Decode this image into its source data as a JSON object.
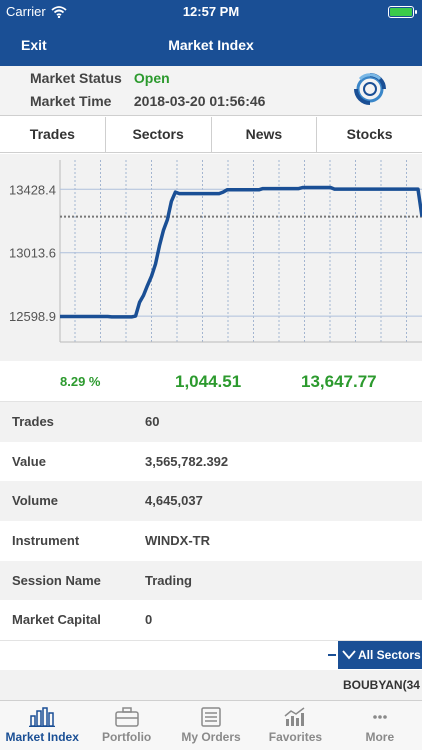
{
  "status_bar": {
    "carrier": "Carrier",
    "time": "12:57 PM"
  },
  "nav": {
    "exit_label": "Exit",
    "title": "Market Index"
  },
  "market_info": {
    "status_label": "Market Status",
    "status_value": "Open",
    "time_label": "Market Time",
    "time_value": "2018-03-20 01:56:46"
  },
  "tabs": [
    {
      "label": "Trades"
    },
    {
      "label": "Sectors"
    },
    {
      "label": "News"
    },
    {
      "label": "Stocks"
    }
  ],
  "chart_data": {
    "type": "line",
    "title": "",
    "xlabel": "",
    "ylabel": "",
    "y_ticks": [
      "13428.4",
      "13013.6",
      "12598.9"
    ],
    "ylim": [
      12430,
      13620
    ],
    "reference_value": 13250,
    "grid": true,
    "series": [
      {
        "color": "#1a4f95",
        "values": [
          12597,
          12597,
          12597,
          12597,
          12597,
          12597,
          12597,
          12597,
          12597,
          12597,
          12597,
          12597,
          12597,
          12594,
          12594,
          12594,
          12594,
          12594,
          12594,
          12600,
          12690,
          12735,
          12800,
          12860,
          12940,
          13060,
          13160,
          13230,
          13350,
          13410,
          13400,
          13400,
          13400,
          13400,
          13400,
          13400,
          13400,
          13400,
          13400,
          13400,
          13400,
          13410,
          13425,
          13425,
          13425,
          13425,
          13425,
          13425,
          13425,
          13425,
          13425,
          13433,
          13433,
          13433,
          13433,
          13433,
          13433,
          13433,
          13433,
          13433,
          13433,
          13440,
          13440,
          13440,
          13440,
          13440,
          13440,
          13440,
          13440,
          13430,
          13430,
          13430,
          13430,
          13430,
          13430,
          13430,
          13430,
          13430,
          13430,
          13430,
          13430,
          13430,
          13430,
          13430,
          13430,
          13430,
          13430,
          13430,
          13430,
          13430,
          13430,
          13250
        ]
      }
    ]
  },
  "summary": {
    "percent": "8.29 %",
    "change": "1,044.51",
    "index": "13,647.77"
  },
  "details": [
    {
      "label": "Trades",
      "value": "60"
    },
    {
      "label": "Value",
      "value": "3,565,782.392"
    },
    {
      "label": "Volume",
      "value": "4,645,037"
    },
    {
      "label": "Instrument",
      "value": "WINDX-TR"
    },
    {
      "label": "Session Name",
      "value": "Trading"
    },
    {
      "label": "Market Capital",
      "value": "0"
    }
  ],
  "sector_filter": {
    "label": "All Sectors"
  },
  "ticker": {
    "text": "BOUBYAN(34"
  },
  "tab_bar": [
    {
      "label": "Market Index",
      "icon": "bar-chart-icon",
      "active": true
    },
    {
      "label": "Portfolio",
      "icon": "briefcase-icon",
      "active": false
    },
    {
      "label": "My Orders",
      "icon": "orders-list-icon",
      "active": false
    },
    {
      "label": "Favorites",
      "icon": "favorites-chart-icon",
      "active": false
    },
    {
      "label": "More",
      "icon": "more-dots-icon",
      "active": false
    }
  ],
  "colors": {
    "primary": "#1a4f95",
    "positive": "#2c9a2e",
    "battery": "#3ccb4a"
  }
}
